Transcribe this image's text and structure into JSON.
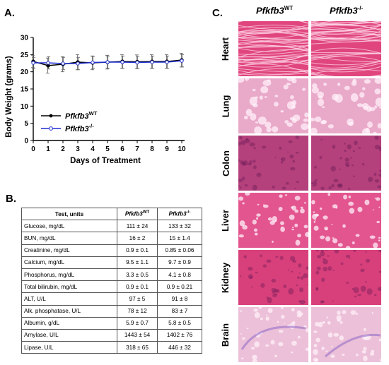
{
  "panels": {
    "a": "A.",
    "b": "B.",
    "c": "C."
  },
  "genotypes": {
    "wt_base": "Pfkfb3",
    "wt_sup": "WT",
    "ko_base": "Pfkfb3",
    "ko_sup": "-/-"
  },
  "chart_data": {
    "type": "line",
    "xlabel": "Days of Treatment",
    "ylabel": "Body Weight (grams)",
    "x": [
      0,
      1,
      2,
      3,
      4,
      5,
      6,
      7,
      8,
      9,
      10
    ],
    "xlim": [
      0,
      10
    ],
    "ylim": [
      0,
      30
    ],
    "yticks": [
      0,
      5,
      10,
      15,
      20,
      25,
      30
    ],
    "legend_position": "bottom-left",
    "series": [
      {
        "name": "Pfkfb3 WT",
        "color": "#000000",
        "values": [
          23.0,
          21.8,
          22.2,
          22.8,
          22.6,
          22.8,
          23.0,
          22.9,
          23.0,
          23.0,
          23.4
        ],
        "errors": [
          1.8,
          2.2,
          2.2,
          2.2,
          2.0,
          2.0,
          2.0,
          2.0,
          2.0,
          2.0,
          2.0
        ]
      },
      {
        "name": "Pfkfb3 -/-",
        "color": "#1f2fd0",
        "values": [
          22.6,
          22.6,
          22.4,
          22.4,
          22.7,
          22.8,
          22.8,
          22.7,
          22.8,
          22.8,
          23.2
        ],
        "errors": [
          1.6,
          1.8,
          1.8,
          1.8,
          1.8,
          1.8,
          1.8,
          1.8,
          1.8,
          1.8,
          1.8
        ]
      }
    ]
  },
  "table": {
    "headers": [
      "Test, units"
    ],
    "rows": [
      [
        "Glucose, mg/dL",
        "111 ± 24",
        "133 ± 32"
      ],
      [
        "BUN, mg/dL",
        "16 ± 2",
        "15 ± 1.4"
      ],
      [
        "Creatinine, mg/dL",
        "0.9 ± 0.1",
        "0.85 ± 0.06"
      ],
      [
        "Calcium, mg/dL",
        "9.5 ± 1.1",
        "9.7 ± 0.9"
      ],
      [
        "Phosphorus, mg/dL",
        "3.3 ± 0.5",
        "4.1 ± 0.8"
      ],
      [
        "Total bilirubin, mg/dL",
        "0.9 ± 0.1",
        "0.9 ± 0.21"
      ],
      [
        "ALT, U/L",
        "97 ± 5",
        "91 ± 8"
      ],
      [
        "Alk. phosphatase, U/L",
        "78 ± 12",
        "83 ± 7"
      ],
      [
        "Albumin, g/dL",
        "5.9 ± 0.7",
        "5.8 ± 0.5"
      ],
      [
        "Amylase, U/L",
        "1443 ± 54",
        "1402 ± 76"
      ],
      [
        "Lipase, U/L",
        "318 ± 65",
        "446 ± 32"
      ]
    ]
  },
  "histology": {
    "organs": [
      "Heart",
      "Lung",
      "Colon",
      "Liver",
      "Kidney",
      "Brain"
    ],
    "colors": [
      "#e0457e",
      "#e9a9c9",
      "#b4407c",
      "#e3558f",
      "#d8407b",
      "#ecc0d8"
    ]
  }
}
